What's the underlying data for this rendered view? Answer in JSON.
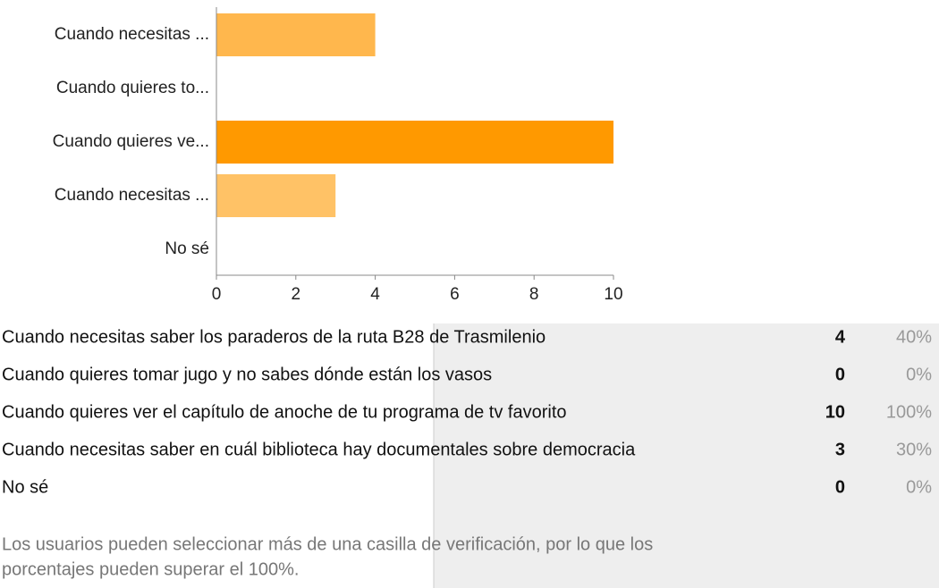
{
  "chart_data": {
    "type": "bar",
    "orientation": "horizontal",
    "categories": [
      "Cuando necesitas ...",
      "Cuando quieres to...",
      "Cuando quieres ve...",
      "Cuando necesitas ...",
      "No sé"
    ],
    "values": [
      4,
      0,
      10,
      3,
      0
    ],
    "colors": [
      "#ffb74d",
      "#ffb74d",
      "#ff9900",
      "#ffc266",
      "#ffb74d"
    ],
    "xlim": [
      0,
      10
    ],
    "xticks": [
      0,
      2,
      4,
      6,
      8,
      10
    ]
  },
  "table": {
    "rows": [
      [
        "Cuando necesitas saber los paraderos de la ruta B28 de Trasmilenio",
        "4",
        "40%"
      ],
      [
        "Cuando quieres tomar jugo y no sabes dónde están los vasos",
        "0",
        "0%"
      ],
      [
        "Cuando quieres ver el capítulo de anoche de tu programa de tv favorito",
        "10",
        "100%"
      ],
      [
        "Cuando necesitas saber en cuál biblioteca hay documentales sobre democracia",
        "3",
        "30%"
      ],
      [
        "No sé",
        "0",
        "0%"
      ]
    ]
  },
  "footnote": [
    "Los usuarios pueden seleccionar más de una casilla de verificación, por lo que los",
    "porcentajes pueden superar el 100%."
  ]
}
